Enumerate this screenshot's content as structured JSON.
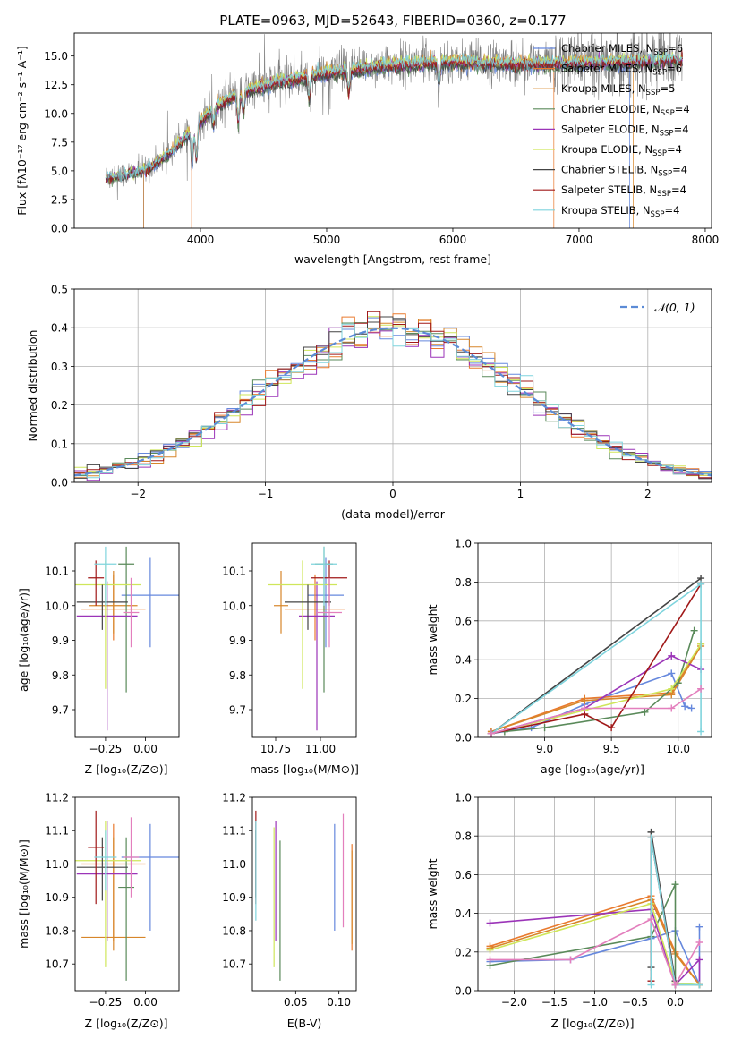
{
  "title": "PLATE=0963, MJD=52643, FIBERID=0360, z=0.177",
  "colors": {
    "Chabrier MILES": "#6688dd",
    "Salpeter MILES": "#e97a2e",
    "Kroupa MILES": "#d7862a",
    "Chabrier ELODIE": "#5a8a5a",
    "Salpeter ELODIE": "#9b34b8",
    "Kroupa ELODIE": "#cfe65a",
    "Chabrier STELIB": "#444444",
    "Salpeter STELIB": "#a01818",
    "Kroupa STELIB": "#7fd4dd",
    "pink": "#e37fbd",
    "data": "#808080",
    "gaussian": "#5b8bd6",
    "grid": "#b0b0b0"
  },
  "legend_spectrum": [
    {
      "base": "Chabrier MILES, N",
      "sub": "SSP",
      "tail": "=6"
    },
    {
      "base": "Salpeter MILES, N",
      "sub": "SSP",
      "tail": "=6"
    },
    {
      "base": "Kroupa MILES, N",
      "sub": "SSP",
      "tail": "=5"
    },
    {
      "base": "Chabrier ELODIE, N",
      "sub": "SSP",
      "tail": "=4"
    },
    {
      "base": "Salpeter ELODIE, N",
      "sub": "SSP",
      "tail": "=4"
    },
    {
      "base": "Kroupa ELODIE, N",
      "sub": "SSP",
      "tail": "=4"
    },
    {
      "base": "Chabrier STELIB, N",
      "sub": "SSP",
      "tail": "=4"
    },
    {
      "base": "Salpeter STELIB, N",
      "sub": "SSP",
      "tail": "=4"
    },
    {
      "base": "Kroupa STELIB, N",
      "sub": "SSP",
      "tail": "=4"
    }
  ],
  "legend_gauss": "𝒩(0, 1)",
  "chart_data": [
    {
      "id": "spectrum",
      "type": "line",
      "xlabel": "wavelength [Angstrom, rest frame]",
      "ylabel": "Flux [fλ10⁻¹⁷ erg cm⁻² s⁻¹ A⁻¹]",
      "xlim": [
        3000,
        8050
      ],
      "ylim": [
        0,
        17
      ],
      "xticks": [
        4000,
        5000,
        6000,
        7000,
        8000
      ],
      "yticks": [
        0.0,
        2.5,
        5.0,
        7.5,
        10.0,
        12.5,
        15.0
      ],
      "wave_range": [
        3250,
        7820
      ],
      "continuum_knots": [
        [
          3250,
          4.4
        ],
        [
          3550,
          5.0
        ],
        [
          3750,
          6.5
        ],
        [
          3950,
          8.8
        ],
        [
          4100,
          10.5
        ],
        [
          4300,
          11.8
        ],
        [
          4600,
          12.8
        ],
        [
          5000,
          13.6
        ],
        [
          5500,
          14.3
        ],
        [
          6000,
          14.6
        ],
        [
          6500,
          14.4
        ],
        [
          7000,
          14.5
        ],
        [
          7500,
          14.6
        ],
        [
          7820,
          14.8
        ]
      ],
      "model_cutoffs": [
        [
          3550,
          7400
        ],
        [
          3930,
          6800
        ],
        [
          3550,
          7430
        ]
      ]
    },
    {
      "id": "residuals",
      "type": "histogram",
      "xlabel": "(data-model)/error",
      "ylabel": "Normed distribution",
      "xlim": [
        -2.5,
        2.5
      ],
      "ylim": [
        0,
        0.5
      ],
      "xticks": [
        -2,
        -1,
        0,
        1,
        2
      ],
      "yticks": [
        0.0,
        0.1,
        0.2,
        0.3,
        0.4,
        0.5
      ],
      "bin_width": 0.1,
      "reference": "normal(0,1)"
    },
    {
      "id": "age_vs_Z",
      "type": "errorbar",
      "xlabel": "Z [log₁₀(Z/Z⊙)]",
      "ylabel": "age  [log₁₀(age/yr)]",
      "xlim": [
        -0.44,
        0.21
      ],
      "ylim": [
        9.62,
        10.18
      ],
      "xticks": [
        -0.25,
        0.0
      ],
      "yticks": [
        9.7,
        9.8,
        9.9,
        10.0,
        10.1
      ],
      "points": [
        {
          "s": "Chabrier MILES",
          "x": 0.03,
          "y": 10.03,
          "xe": 0.18,
          "ye": [
            0.15,
            0.11
          ]
        },
        {
          "s": "Salpeter MILES",
          "x": -0.2,
          "y": 9.99,
          "xe": 0.2,
          "ye": [
            0.09,
            0.1
          ]
        },
        {
          "s": "Kroupa MILES",
          "x": -0.2,
          "y": 10.0,
          "xe": 0.15,
          "ye": [
            0.08,
            0.1
          ]
        },
        {
          "s": "Chabrier ELODIE",
          "x": -0.12,
          "y": 10.12,
          "xe": 0.05,
          "ye": [
            0.37,
            0.05
          ]
        },
        {
          "s": "Salpeter ELODIE",
          "x": -0.24,
          "y": 9.97,
          "xe": 0.19,
          "ye": [
            0.33,
            0.1
          ]
        },
        {
          "s": "Kroupa ELODIE",
          "x": -0.25,
          "y": 10.06,
          "xe": 0.22,
          "ye": [
            0.3,
            0.07
          ]
        },
        {
          "s": "Chabrier STELIB",
          "x": -0.27,
          "y": 10.01,
          "xe": 0.16,
          "ye": [
            0.08,
            0.05
          ]
        },
        {
          "s": "Salpeter STELIB",
          "x": -0.31,
          "y": 10.08,
          "xe": 0.05,
          "ye": [
            0.08,
            0.05
          ]
        },
        {
          "s": "Kroupa STELIB",
          "x": -0.25,
          "y": 10.12,
          "xe": 0.07,
          "ye": [
            0.12,
            0.05
          ]
        },
        {
          "s": "pink",
          "x": -0.09,
          "y": 9.98,
          "xe": 0.05,
          "ye": [
            0.1,
            0.1
          ]
        }
      ]
    },
    {
      "id": "age_vs_mass",
      "type": "errorbar",
      "xlabel": "mass [log₁₀(M/M⊙)]",
      "ylabel": "",
      "xlim": [
        10.62,
        11.2
      ],
      "ylim": [
        9.62,
        10.18
      ],
      "xticks": [
        10.75,
        11.0
      ],
      "yticks": [
        9.7,
        9.8,
        9.9,
        10.0,
        10.1
      ],
      "points": [
        {
          "s": "Chabrier MILES",
          "x": 11.03,
          "y": 10.03,
          "xe": 0.1,
          "ye": [
            0.15,
            0.11
          ]
        },
        {
          "s": "Salpeter MILES",
          "x": 10.97,
          "y": 9.99,
          "xe": 0.17,
          "ye": [
            0.09,
            0.1
          ]
        },
        {
          "s": "Kroupa MILES",
          "x": 10.78,
          "y": 10.0,
          "xe": 0.04,
          "ye": [
            0.08,
            0.1
          ]
        },
        {
          "s": "Chabrier ELODIE",
          "x": 11.02,
          "y": 10.12,
          "xe": 0.05,
          "ye": [
            0.37,
            0.05
          ]
        },
        {
          "s": "Salpeter ELODIE",
          "x": 10.98,
          "y": 9.97,
          "xe": 0.1,
          "ye": [
            0.33,
            0.1
          ]
        },
        {
          "s": "Kroupa ELODIE",
          "x": 10.9,
          "y": 10.06,
          "xe": 0.19,
          "ye": [
            0.3,
            0.07
          ]
        },
        {
          "s": "Chabrier STELIB",
          "x": 10.93,
          "y": 10.01,
          "xe": 0.13,
          "ye": [
            0.08,
            0.05
          ]
        },
        {
          "s": "Salpeter STELIB",
          "x": 11.05,
          "y": 10.08,
          "xe": 0.1,
          "ye": [
            0.08,
            0.05
          ]
        },
        {
          "s": "Kroupa STELIB",
          "x": 11.02,
          "y": 10.12,
          "xe": 0.07,
          "ye": [
            0.12,
            0.05
          ]
        },
        {
          "s": "pink",
          "x": 11.05,
          "y": 9.98,
          "xe": 0.07,
          "ye": [
            0.1,
            0.1
          ]
        }
      ]
    },
    {
      "id": "weight_vs_age",
      "type": "line",
      "xlabel": "age  [log₁₀(age/yr)]",
      "ylabel": "mass weight",
      "xlim": [
        8.5,
        10.25
      ],
      "ylim": [
        0,
        1
      ],
      "xticks": [
        9.0,
        9.5,
        10.0
      ],
      "yticks": [
        0.0,
        0.2,
        0.4,
        0.6,
        0.8,
        1.0
      ],
      "series": [
        {
          "s": "Chabrier MILES",
          "x": [
            8.6,
            8.9,
            9.3,
            9.95,
            10.05,
            10.1
          ],
          "y": [
            0.02,
            0.05,
            0.17,
            0.33,
            0.16,
            0.15
          ]
        },
        {
          "s": "Salpeter MILES",
          "x": [
            8.6,
            9.3,
            9.95,
            10.17
          ],
          "y": [
            0.03,
            0.2,
            0.23,
            0.48
          ]
        },
        {
          "s": "Kroupa MILES",
          "x": [
            8.6,
            9.3,
            9.95,
            10.17
          ],
          "y": [
            0.03,
            0.19,
            0.22,
            0.47
          ]
        },
        {
          "s": "Chabrier ELODIE",
          "x": [
            8.7,
            9.0,
            9.75,
            10.0,
            10.12
          ],
          "y": [
            0.03,
            0.05,
            0.13,
            0.28,
            0.55
          ]
        },
        {
          "s": "Salpeter ELODIE",
          "x": [
            8.6,
            9.3,
            9.95,
            10.17
          ],
          "y": [
            0.02,
            0.15,
            0.42,
            0.35
          ]
        },
        {
          "s": "Kroupa ELODIE",
          "x": [
            8.6,
            9.3,
            9.95,
            10.17
          ],
          "y": [
            0.02,
            0.14,
            0.25,
            0.48
          ]
        },
        {
          "s": "Chabrier STELIB",
          "x": [
            8.6,
            10.17
          ],
          "y": [
            0.02,
            0.82
          ]
        },
        {
          "s": "Salpeter STELIB",
          "x": [
            8.6,
            9.3,
            9.5,
            10.17
          ],
          "y": [
            0.02,
            0.12,
            0.05,
            0.79
          ]
        },
        {
          "s": "Kroupa STELIB",
          "x": [
            8.6,
            10.17,
            10.17
          ],
          "y": [
            0.02,
            0.79,
            0.03
          ]
        },
        {
          "s": "pink",
          "x": [
            8.6,
            9.3,
            9.95,
            10.17
          ],
          "y": [
            0.02,
            0.15,
            0.15,
            0.25
          ]
        }
      ]
    },
    {
      "id": "mass_vs_Z",
      "type": "errorbar",
      "xlabel": "Z [log₁₀(Z/Z⊙)]",
      "ylabel": "mass [log₁₀(M/M⊙)]",
      "xlim": [
        -0.44,
        0.21
      ],
      "ylim": [
        10.62,
        11.2
      ],
      "xticks": [
        -0.25,
        0.0
      ],
      "yticks": [
        10.7,
        10.8,
        10.9,
        11.0,
        11.1,
        11.2
      ],
      "points": [
        {
          "s": "Chabrier MILES",
          "x": 0.03,
          "y": 11.02,
          "xe": 0.18,
          "ye": [
            0.22,
            0.1
          ]
        },
        {
          "s": "Salpeter MILES",
          "x": -0.2,
          "y": 11.0,
          "xe": 0.2,
          "ye": [
            0.23,
            0.12
          ]
        },
        {
          "s": "Kroupa MILES",
          "x": -0.2,
          "y": 10.78,
          "xe": 0.2,
          "ye": [
            0.04,
            0.3
          ]
        },
        {
          "s": "Chabrier ELODIE",
          "x": -0.12,
          "y": 10.93,
          "xe": 0.05,
          "ye": [
            0.28,
            0.15
          ]
        },
        {
          "s": "Salpeter ELODIE",
          "x": -0.24,
          "y": 10.97,
          "xe": 0.19,
          "ye": [
            0.2,
            0.16
          ]
        },
        {
          "s": "Kroupa ELODIE",
          "x": -0.25,
          "y": 11.01,
          "xe": 0.22,
          "ye": [
            0.32,
            0.12
          ]
        },
        {
          "s": "Chabrier STELIB",
          "x": -0.27,
          "y": 10.99,
          "xe": 0.16,
          "ye": [
            0.1,
            0.09
          ]
        },
        {
          "s": "Salpeter STELIB",
          "x": -0.31,
          "y": 11.05,
          "xe": 0.05,
          "ye": [
            0.17,
            0.11
          ]
        },
        {
          "s": "Kroupa STELIB",
          "x": -0.25,
          "y": 11.02,
          "xe": 0.07,
          "ye": [
            0.1,
            0.08
          ]
        },
        {
          "s": "pink",
          "x": -0.09,
          "y": 11.02,
          "xe": 0.05,
          "ye": [
            0.12,
            0.12
          ]
        }
      ]
    },
    {
      "id": "mass_vs_EBV",
      "type": "errorbar",
      "xlabel": "E(B-V)",
      "ylabel": "",
      "xlim": [
        0.0,
        0.12
      ],
      "ylim": [
        10.62,
        11.2
      ],
      "xticks": [
        0.05,
        0.1
      ],
      "yticks": [
        10.7,
        10.8,
        10.9,
        11.0,
        11.1,
        11.2
      ],
      "points": [
        {
          "s": "Chabrier MILES",
          "x": 0.095,
          "y": 10.96,
          "xe": 0,
          "ye": [
            0.16,
            0.16
          ]
        },
        {
          "s": "Salpeter MILES",
          "x": 0.115,
          "y": 10.9,
          "xe": 0,
          "ye": [
            0.16,
            0.16
          ]
        },
        {
          "s": "Kroupa MILES",
          "x": 0.115,
          "y": 10.9,
          "xe": 0,
          "ye": [
            0.14,
            0.14
          ]
        },
        {
          "s": "Chabrier ELODIE",
          "x": 0.032,
          "y": 10.86,
          "xe": 0,
          "ye": [
            0.21,
            0.21
          ]
        },
        {
          "s": "Salpeter ELODIE",
          "x": 0.027,
          "y": 10.95,
          "xe": 0,
          "ye": [
            0.18,
            0.18
          ]
        },
        {
          "s": "Kroupa ELODIE",
          "x": 0.025,
          "y": 10.9,
          "xe": 0,
          "ye": [
            0.21,
            0.21
          ]
        },
        {
          "s": "Chabrier STELIB",
          "x": 0.004,
          "y": 11.0,
          "xe": 0,
          "ye": [
            0.1,
            0.1
          ]
        },
        {
          "s": "Salpeter STELIB",
          "x": 0.004,
          "y": 11.02,
          "xe": 0,
          "ye": [
            0.14,
            0.14
          ]
        },
        {
          "s": "Kroupa STELIB",
          "x": 0.004,
          "y": 10.98,
          "xe": 0,
          "ye": [
            0.15,
            0.15
          ]
        },
        {
          "s": "pink",
          "x": 0.105,
          "y": 10.98,
          "xe": 0,
          "ye": [
            0.17,
            0.17
          ]
        }
      ]
    },
    {
      "id": "weight_vs_Z",
      "type": "line",
      "xlabel": "Z [log₁₀(Z/Z⊙)]",
      "ylabel": "mass weight",
      "xlim": [
        -2.45,
        0.45
      ],
      "ylim": [
        0,
        1
      ],
      "xticks": [
        -2.0,
        -1.5,
        -1.0,
        -0.5,
        0.0
      ],
      "yticks": [
        0.0,
        0.2,
        0.4,
        0.6,
        0.8,
        1.0
      ],
      "series": [
        {
          "s": "Chabrier MILES",
          "x": [
            -2.3,
            -1.3,
            -0.3,
            0.0,
            0.3,
            0.3
          ],
          "y": [
            0.15,
            0.16,
            0.27,
            0.31,
            0.03,
            0.33
          ]
        },
        {
          "s": "Salpeter MILES",
          "x": [
            -2.3,
            -0.3,
            0.0,
            0.3
          ],
          "y": [
            0.23,
            0.49,
            0.2,
            0.03
          ]
        },
        {
          "s": "Kroupa MILES",
          "x": [
            -2.3,
            -0.3,
            0.0,
            0.3
          ],
          "y": [
            0.22,
            0.47,
            0.19,
            0.03
          ]
        },
        {
          "s": "Chabrier ELODIE",
          "x": [
            -2.3,
            -0.3,
            0.0,
            0.0,
            0.3
          ],
          "y": [
            0.13,
            0.28,
            0.55,
            0.03,
            0.03
          ]
        },
        {
          "s": "Salpeter ELODIE",
          "x": [
            -2.3,
            -0.3,
            0.0,
            0.3,
            0.3
          ],
          "y": [
            0.35,
            0.42,
            0.03,
            0.16,
            0.03
          ]
        },
        {
          "s": "Kroupa ELODIE",
          "x": [
            -2.3,
            -0.3,
            0.0,
            0.3
          ],
          "y": [
            0.21,
            0.45,
            0.04,
            0.03
          ]
        },
        {
          "s": "Chabrier STELIB",
          "x": [
            -0.3,
            -0.3,
            0.0
          ],
          "y": [
            0.12,
            0.82,
            0.05
          ]
        },
        {
          "s": "Salpeter STELIB",
          "x": [
            -0.3,
            -0.3,
            0.0
          ],
          "y": [
            0.05,
            0.79,
            0.03
          ]
        },
        {
          "s": "Kroupa STELIB",
          "x": [
            -0.3,
            -0.3,
            0.0,
            0.3
          ],
          "y": [
            0.03,
            0.79,
            0.03,
            0.03
          ]
        },
        {
          "s": "pink",
          "x": [
            -2.3,
            -1.3,
            -0.3,
            0.0,
            0.3
          ],
          "y": [
            0.16,
            0.16,
            0.37,
            0.03,
            0.25
          ]
        }
      ]
    }
  ]
}
